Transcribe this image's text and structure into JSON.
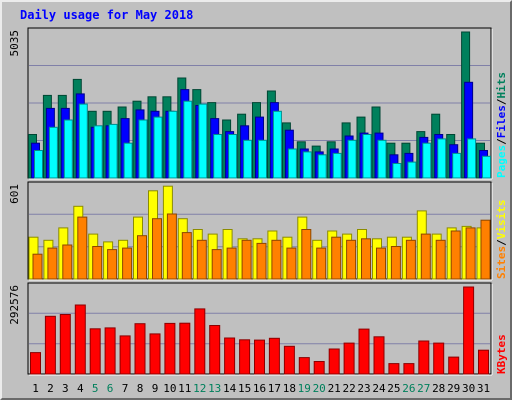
{
  "title": "Daily usage for May 2018",
  "colors": {
    "background": "#c0c0c0",
    "title": "#0000ff",
    "hits": "#00805c",
    "files": "#0000ff",
    "pages": "#00ffff",
    "visits": "#ffff00",
    "sites": "#ff8000",
    "kbytes": "#ff0000",
    "weekend_label": "#00805c",
    "weekday_label": "#000000"
  },
  "chart_data": [
    {
      "type": "bar",
      "panel": "hits-files-pages",
      "max_label": "5035",
      "ylim": [
        0,
        5035
      ],
      "categories": [
        "1",
        "2",
        "3",
        "4",
        "5",
        "6",
        "7",
        "8",
        "9",
        "10",
        "11",
        "12",
        "13",
        "14",
        "15",
        "16",
        "17",
        "18",
        "19",
        "20",
        "21",
        "22",
        "23",
        "24",
        "25",
        "26",
        "27",
        "28",
        "29",
        "30",
        "31"
      ],
      "weekend_days": [
        "5",
        "6",
        "12",
        "13",
        "19",
        "20",
        "26",
        "27"
      ],
      "legend": [
        "Pages",
        "Files",
        "Hits"
      ],
      "series": [
        {
          "name": "Hits",
          "values": [
            1500,
            2850,
            2850,
            3400,
            2300,
            2300,
            2450,
            2650,
            2800,
            2800,
            3450,
            3050,
            2600,
            2000,
            2200,
            2600,
            3000,
            1900,
            1250,
            1100,
            1250,
            1900,
            2100,
            2450,
            1200,
            1200,
            1600,
            2200,
            1500,
            5035,
            1200
          ]
        },
        {
          "name": "Files",
          "values": [
            1200,
            2400,
            2400,
            2900,
            1750,
            1800,
            2050,
            2350,
            2300,
            2300,
            3050,
            2500,
            2050,
            1600,
            1800,
            2100,
            2600,
            1650,
            1000,
            900,
            1000,
            1450,
            1550,
            1550,
            800,
            850,
            1400,
            1500,
            1150,
            3300,
            950
          ]
        },
        {
          "name": "Pages",
          "values": [
            950,
            1750,
            2000,
            2550,
            1800,
            1850,
            1200,
            2000,
            2100,
            2300,
            2650,
            2550,
            1500,
            1500,
            1300,
            1300,
            2300,
            1000,
            900,
            800,
            850,
            1300,
            1500,
            1300,
            500,
            550,
            1200,
            1350,
            850,
            1350,
            750
          ]
        }
      ]
    },
    {
      "type": "bar",
      "panel": "visits-sites",
      "max_label": "601",
      "ylim": [
        0,
        601
      ],
      "categories": [
        "1",
        "2",
        "3",
        "4",
        "5",
        "6",
        "7",
        "8",
        "9",
        "10",
        "11",
        "12",
        "13",
        "14",
        "15",
        "16",
        "17",
        "18",
        "19",
        "20",
        "21",
        "22",
        "23",
        "24",
        "25",
        "26",
        "27",
        "28",
        "29",
        "30",
        "31"
      ],
      "legend": [
        "Sites",
        "Visits"
      ],
      "series": [
        {
          "name": "Visits",
          "values": [
            270,
            250,
            330,
            470,
            290,
            240,
            250,
            400,
            570,
            600,
            390,
            320,
            290,
            320,
            260,
            260,
            310,
            270,
            400,
            250,
            310,
            290,
            320,
            260,
            270,
            270,
            440,
            290,
            330,
            340,
            330
          ]
        },
        {
          "name": "Sites",
          "values": [
            160,
            200,
            220,
            400,
            210,
            190,
            200,
            280,
            390,
            420,
            300,
            250,
            190,
            200,
            250,
            230,
            250,
            200,
            320,
            200,
            270,
            250,
            260,
            200,
            210,
            250,
            290,
            250,
            310,
            330,
            380
          ]
        }
      ]
    },
    {
      "type": "bar",
      "panel": "kbytes",
      "max_label": "292576",
      "ylim": [
        0,
        292576
      ],
      "categories": [
        "1",
        "2",
        "3",
        "4",
        "5",
        "6",
        "7",
        "8",
        "9",
        "10",
        "11",
        "12",
        "13",
        "14",
        "15",
        "16",
        "17",
        "18",
        "19",
        "20",
        "21",
        "22",
        "23",
        "24",
        "25",
        "26",
        "27",
        "28",
        "29",
        "30",
        "31"
      ],
      "legend": [
        "KBytes"
      ],
      "series": [
        {
          "name": "KBytes",
          "values": [
            72000,
            194000,
            200000,
            232000,
            152000,
            155000,
            128000,
            169000,
            135000,
            170000,
            171000,
            219000,
            163000,
            121000,
            115000,
            114000,
            120000,
            93000,
            55000,
            42000,
            84000,
            104000,
            151000,
            125000,
            35000,
            35000,
            111000,
            104000,
            57000,
            292576,
            80000
          ]
        }
      ]
    }
  ]
}
